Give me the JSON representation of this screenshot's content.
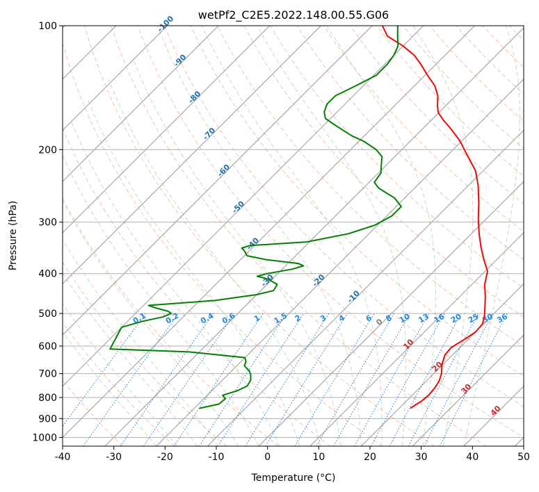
{
  "chart_data": {
    "type": "skew-t",
    "title": "wetPf2_C2E5.2022.148.00.55.G06",
    "xlabel": "Temperature (°C)",
    "ylabel": "Pressure (hPa)",
    "xlim": [
      -40,
      50
    ],
    "ylim": [
      1050,
      100
    ],
    "y_scale": "log",
    "grid": true,
    "x_ticks": [
      -40,
      -30,
      -20,
      -10,
      0,
      10,
      20,
      30,
      40,
      50
    ],
    "y_ticks": [
      100,
      200,
      300,
      400,
      500,
      600,
      700,
      800,
      900,
      1000
    ],
    "isotherm_labels": [
      -100,
      -90,
      -80,
      -70,
      -60,
      -50,
      -40,
      -30,
      -20,
      -10,
      0,
      10,
      20,
      30,
      40
    ],
    "mixing_ratio_labels": [
      "0.1",
      "0.2",
      "0.4",
      "0.6",
      "1",
      "1.5",
      "2",
      "3",
      "4",
      "6",
      "8",
      "10",
      "13",
      "16",
      "20",
      "25",
      "30",
      "36"
    ],
    "series": [
      {
        "color": "#ff0000",
        "role": "temperature",
        "points": [
          [
            850,
            22.2
          ],
          [
            835,
            22.5
          ],
          [
            815,
            23.0
          ],
          [
            790,
            23.2
          ],
          [
            760,
            23.0
          ],
          [
            730,
            22.5
          ],
          [
            700,
            21.5
          ],
          [
            665,
            19.8
          ],
          [
            630,
            18.5
          ],
          [
            605,
            18.3
          ],
          [
            580,
            19.2
          ],
          [
            555,
            20.0
          ],
          [
            530,
            19.8
          ],
          [
            505,
            18.5
          ],
          [
            480,
            16.8
          ],
          [
            455,
            15.0
          ],
          [
            425,
            12.5
          ],
          [
            395,
            10.5
          ],
          [
            370,
            7.5
          ],
          [
            345,
            4.5
          ],
          [
            320,
            1.5
          ],
          [
            295,
            -1.5
          ],
          [
            270,
            -4.5
          ],
          [
            245,
            -8.0
          ],
          [
            225,
            -11.5
          ],
          [
            205,
            -16.5
          ],
          [
            190,
            -20.5
          ],
          [
            178,
            -24.5
          ],
          [
            170,
            -27.5
          ],
          [
            163,
            -30.0
          ],
          [
            157,
            -31.5
          ],
          [
            148,
            -33.5
          ],
          [
            140,
            -36.0
          ],
          [
            132,
            -39.5
          ],
          [
            124,
            -43.0
          ],
          [
            118,
            -46.0
          ],
          [
            112,
            -50.0
          ],
          [
            106,
            -55.0
          ],
          [
            100,
            -58.0
          ]
        ]
      },
      {
        "color": "#008000",
        "role": "dewpoint",
        "points": [
          [
            850,
            -19.0
          ],
          [
            830,
            -16.0
          ],
          [
            805,
            -15.8
          ],
          [
            790,
            -17.0
          ],
          [
            770,
            -15.0
          ],
          [
            750,
            -14.0
          ],
          [
            725,
            -14.5
          ],
          [
            705,
            -15.5
          ],
          [
            690,
            -16.5
          ],
          [
            670,
            -18.5
          ],
          [
            655,
            -19.0
          ],
          [
            640,
            -20.0
          ],
          [
            620,
            -32.0
          ],
          [
            610,
            -48.0
          ],
          [
            540,
            -50.0
          ],
          [
            522,
            -47.0
          ],
          [
            510,
            -44.0
          ],
          [
            500,
            -43.0
          ],
          [
            494,
            -44.0
          ],
          [
            485,
            -47.0
          ],
          [
            478,
            -49.0
          ],
          [
            465,
            -37.0
          ],
          [
            450,
            -30.0
          ],
          [
            440,
            -27.5
          ],
          [
            425,
            -28.0
          ],
          [
            412,
            -31.0
          ],
          [
            406,
            -33.5
          ],
          [
            400,
            -32.0
          ],
          [
            390,
            -28.0
          ],
          [
            383,
            -26.5
          ],
          [
            378,
            -28.0
          ],
          [
            370,
            -35.0
          ],
          [
            362,
            -39.5
          ],
          [
            352,
            -41.0
          ],
          [
            347,
            -42.0
          ],
          [
            342,
            -41.0
          ],
          [
            335,
            -30.5
          ],
          [
            320,
            -24.0
          ],
          [
            305,
            -20.5
          ],
          [
            290,
            -19.0
          ],
          [
            275,
            -19.0
          ],
          [
            262,
            -22.0
          ],
          [
            255,
            -24.5
          ],
          [
            248,
            -27.0
          ],
          [
            240,
            -29.0
          ],
          [
            228,
            -29.5
          ],
          [
            218,
            -31.0
          ],
          [
            208,
            -32.5
          ],
          [
            200,
            -35.0
          ],
          [
            191,
            -39.0
          ],
          [
            185,
            -42.5
          ],
          [
            180,
            -45.0
          ],
          [
            174,
            -48.0
          ],
          [
            168,
            -51.0
          ],
          [
            162,
            -52.5
          ],
          [
            155,
            -53.5
          ],
          [
            148,
            -53.5
          ],
          [
            140,
            -51.5
          ],
          [
            132,
            -49.5
          ],
          [
            124,
            -49.5
          ],
          [
            118,
            -50.0
          ],
          [
            112,
            -51.0
          ],
          [
            106,
            -53.0
          ],
          [
            100,
            -55.0
          ]
        ]
      }
    ]
  }
}
